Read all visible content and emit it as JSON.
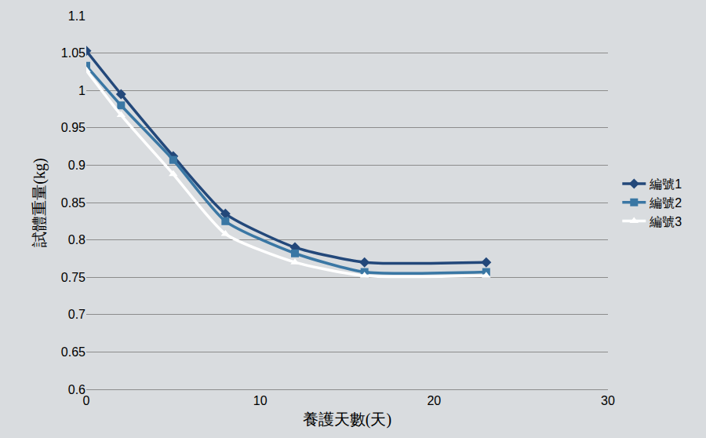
{
  "chart_data": {
    "type": "line",
    "x_label": "養護天數(天)",
    "y_label": "試體重量(kg)",
    "x": [
      0,
      2,
      5,
      8,
      12,
      16,
      23
    ],
    "series": [
      {
        "name": "編號1",
        "color": "#23487a",
        "marker": "diamond",
        "values": [
          1.053,
          0.995,
          0.912,
          0.835,
          0.79,
          0.77,
          0.77
        ]
      },
      {
        "name": "編號2",
        "color": "#3a77a4",
        "marker": "square",
        "values": [
          1.033,
          0.98,
          0.907,
          0.825,
          0.782,
          0.757,
          0.757
        ]
      },
      {
        "name": "編號3",
        "color": "#ffffff",
        "marker": "triangle-up",
        "values": [
          1.027,
          0.967,
          0.888,
          0.808,
          0.77,
          0.752,
          0.752
        ]
      }
    ],
    "xlim": [
      0,
      30
    ],
    "xticks": [
      0,
      10,
      20,
      30
    ],
    "ylim": [
      0.6,
      1.1
    ],
    "yticks": [
      0.6,
      0.65,
      0.7,
      0.75,
      0.8,
      0.85,
      0.9,
      0.95,
      1,
      1.05,
      1.1
    ],
    "grid": true,
    "legend": "right",
    "line_style": "smooth"
  }
}
